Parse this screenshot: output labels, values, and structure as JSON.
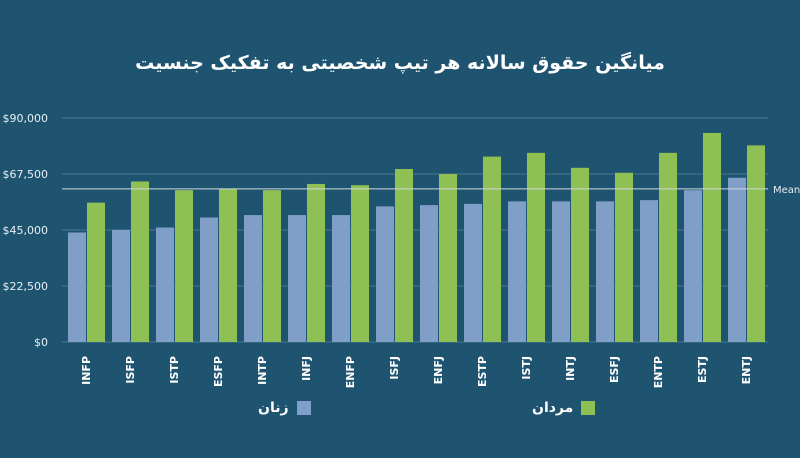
{
  "chart_data": {
    "type": "bar",
    "title": "میانگین حقوق سالانه هر تیپ شخصیتی به تفکیک جنسیت",
    "categories": [
      "INFP",
      "ISFP",
      "ISTP",
      "ESFP",
      "INTP",
      "INFJ",
      "ENFP",
      "ISFJ",
      "ENFJ",
      "ESTP",
      "ISTJ",
      "INTJ",
      "ESFJ",
      "ENTP",
      "ESTJ",
      "ENTJ"
    ],
    "series": [
      {
        "name": "زنان",
        "color": "#7f9fc8",
        "values": [
          44000,
          45000,
          46000,
          50000,
          51000,
          51000,
          51000,
          54500,
          55000,
          55500,
          56500,
          56500,
          56500,
          57000,
          61000,
          66000
        ]
      },
      {
        "name": "مردان",
        "color": "#8fc053",
        "values": [
          56000,
          64500,
          61000,
          61500,
          61000,
          63500,
          63000,
          69500,
          67500,
          74500,
          76000,
          70000,
          68000,
          76000,
          84000,
          79000
        ]
      }
    ],
    "ylim": [
      0,
      90000
    ],
    "yticks": [
      0,
      22500,
      45000,
      67500,
      90000
    ],
    "ytick_labels": [
      "$0",
      "$22,500",
      "$45,000",
      "$67,500",
      "$90,000"
    ],
    "mean_line": {
      "value": 61500,
      "label": "Mean"
    },
    "grid": true,
    "legend_position": "bottom"
  }
}
